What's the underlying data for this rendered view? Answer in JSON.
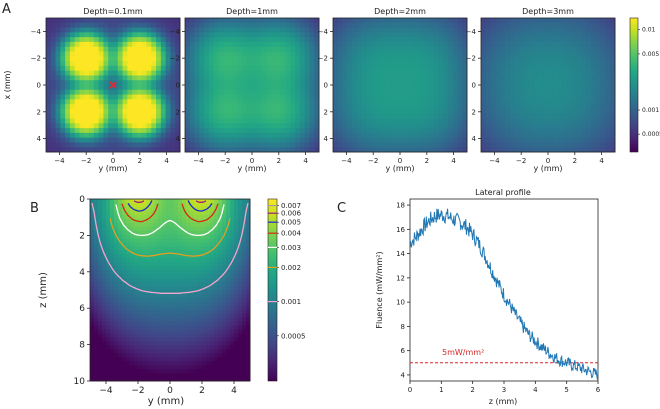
{
  "colors": {
    "viridis": [
      "#440154",
      "#482475",
      "#414487",
      "#355f8d",
      "#2a788e",
      "#21918c",
      "#22a884",
      "#44bf70",
      "#7ad151",
      "#bddf26",
      "#fde725"
    ],
    "marker": "#e8262a",
    "profile_line": "#1f77b4",
    "threshold_line": "#d62728",
    "contours": [
      "#a0a0a0",
      "#9e1b7a",
      "#1a2acf",
      "#d62818",
      "#ffffff",
      "#e0a020",
      "#f2a6cc"
    ]
  },
  "chart_data": [
    {
      "type": "heatmap",
      "panel_label": "A",
      "subplots": [
        {
          "title": "Depth=0.1mm",
          "depth_mm": 0.1
        },
        {
          "title": "Depth=1mm",
          "depth_mm": 1
        },
        {
          "title": "Depth=2mm",
          "depth_mm": 2
        },
        {
          "title": "Depth=3mm",
          "depth_mm": 3
        }
      ],
      "sources_mm": [
        [
          -2,
          -2
        ],
        [
          2,
          -2
        ],
        [
          -2,
          2
        ],
        [
          2,
          2
        ]
      ],
      "marker_xy_mm": [
        0,
        0
      ],
      "xlabel": "y (mm)",
      "ylabel": "x (mm)",
      "xlim": [
        -5,
        5
      ],
      "ylim": [
        5,
        -5
      ],
      "xticks": [
        "−4",
        "−2",
        "0",
        "2",
        "4"
      ],
      "yticks": [
        "−4",
        "−2",
        "0",
        "2",
        "4"
      ],
      "colorbar": {
        "ticks": [
          "0.01",
          "0.005",
          "0.001",
          "0.0005"
        ],
        "tick_values": [
          0.01,
          0.005,
          0.001,
          0.0005
        ],
        "range": [
          0.0003,
          0.014
        ],
        "scale": "log"
      }
    },
    {
      "type": "heatmap",
      "panel_label": "B",
      "xlabel": "y (mm)",
      "ylabel": "z (mm)",
      "xlim": [
        -5,
        5
      ],
      "ylim": [
        10,
        0
      ],
      "xticks": [
        "−4",
        "−2",
        "0",
        "2",
        "4"
      ],
      "yticks": [
        "0",
        "2",
        "4",
        "6",
        "8",
        "10"
      ],
      "contour_levels": [
        0.007,
        0.006,
        0.005,
        0.004,
        0.003,
        0.002,
        0.001
      ],
      "colorbar": {
        "ticks": [
          "0.007",
          "0.006",
          "0.005",
          "0.004",
          "0.003",
          "0.002",
          "0.001",
          "0.0005"
        ],
        "tick_values": [
          0.007,
          0.006,
          0.005,
          0.004,
          0.003,
          0.002,
          0.001,
          0.0005
        ],
        "range": [
          0.0002,
          0.008
        ],
        "scale": "log"
      }
    },
    {
      "type": "line",
      "panel_label": "C",
      "title": "Lateral profile",
      "xlabel": "z (mm)",
      "ylabel": "Fluence (mW/mm²)",
      "xlim": [
        0,
        6
      ],
      "ylim": [
        3.5,
        18.5
      ],
      "xticks": [
        "0",
        "1",
        "2",
        "3",
        "4",
        "5",
        "6"
      ],
      "yticks": [
        "4",
        "6",
        "8",
        "10",
        "12",
        "14",
        "16",
        "18"
      ],
      "threshold": {
        "value": 5,
        "label": "5mW/mm²"
      },
      "series": [
        {
          "name": "profile",
          "x": [
            0,
            0.2,
            0.4,
            0.6,
            0.8,
            1.0,
            1.2,
            1.4,
            1.6,
            1.8,
            2.0,
            2.2,
            2.4,
            2.6,
            2.8,
            3.0,
            3.2,
            3.4,
            3.6,
            3.8,
            4.0,
            4.2,
            4.4,
            4.6,
            4.8,
            5.0,
            5.2,
            5.4,
            5.6,
            5.8,
            6.0
          ],
          "values": [
            14.9,
            15.4,
            16.1,
            16.7,
            17.1,
            17.2,
            17.1,
            16.8,
            16.6,
            16.2,
            15.6,
            14.8,
            13.8,
            12.7,
            11.6,
            10.6,
            9.7,
            8.8,
            8.0,
            7.3,
            6.8,
            6.3,
            5.9,
            5.5,
            5.2,
            5.0,
            4.8,
            4.6,
            4.4,
            4.2,
            4.0
          ]
        }
      ]
    }
  ]
}
